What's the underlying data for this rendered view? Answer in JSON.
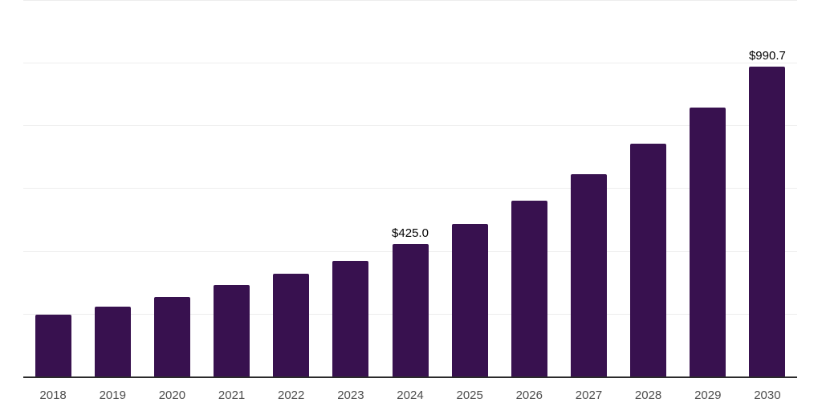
{
  "chart": {
    "bar_color": "#38114F",
    "grid_color": "#ededed",
    "axis_color": "#2b2b2b",
    "tick_label_color": "#4d4d4d",
    "value_label_color": "#000000",
    "background_color": "#ffffff"
  },
  "chart_data": {
    "type": "bar",
    "title": "",
    "xlabel": "",
    "ylabel": "",
    "categories": [
      "2018",
      "2019",
      "2020",
      "2021",
      "2022",
      "2023",
      "2024",
      "2025",
      "2026",
      "2027",
      "2028",
      "2029",
      "2030"
    ],
    "values": [
      200,
      225,
      256,
      294,
      330,
      371,
      425.0,
      489,
      563,
      647,
      744,
      859,
      990.7
    ],
    "ylim": [
      0,
      1200
    ],
    "gridline_step": 200,
    "grid": "horizontal, no tick labels",
    "legend": "none",
    "annotations": [
      {
        "category": "2024",
        "text": "$425.0"
      },
      {
        "category": "2030",
        "text": "$990.7"
      }
    ]
  }
}
